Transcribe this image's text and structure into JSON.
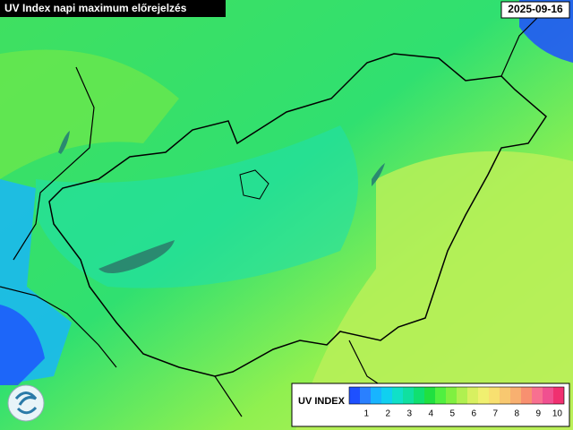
{
  "header": {
    "title": "UV Index napi maximum előrejelzés",
    "date": "2025-09-16"
  },
  "legend": {
    "title": "UV INDEX",
    "ticks": [
      1,
      2,
      3,
      4,
      5,
      6,
      7,
      8,
      9,
      10
    ],
    "colors": [
      "#1e50ff",
      "#2a80ff",
      "#18b4ff",
      "#10d0f0",
      "#10e0c8",
      "#10e0a0",
      "#10e070",
      "#20e040",
      "#50f040",
      "#80f040",
      "#b0f050",
      "#d8f060",
      "#f0f070",
      "#f8e070",
      "#f8c870",
      "#f8b070",
      "#f89070",
      "#f87090",
      "#f05090",
      "#f03070"
    ]
  }
}
